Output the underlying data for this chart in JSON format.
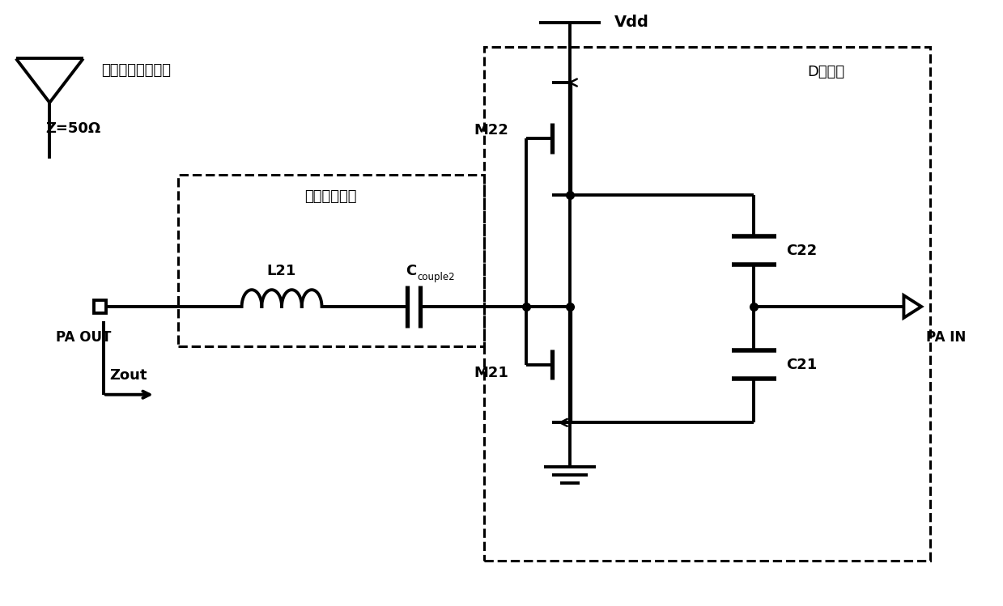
{
  "background_color": "#ffffff",
  "line_color": "#000000",
  "line_width": 2.8,
  "antenna_label": "天线（接收信号）",
  "impedance_label": "Z=50Ω",
  "matching_label": "阻抗匹配网络",
  "class_d_label": "D类结构",
  "vdd_label": "Vdd",
  "pa_out_label": "PA OUT",
  "pa_in_label": "PA IN",
  "zout_label": "Zout",
  "l21_label": "L21",
  "c_couple2_label": "C",
  "c_couple2_sub": "couple2",
  "m22_label": "M22",
  "m21_label": "M21",
  "c22_label": "C22",
  "c21_label": "C21"
}
